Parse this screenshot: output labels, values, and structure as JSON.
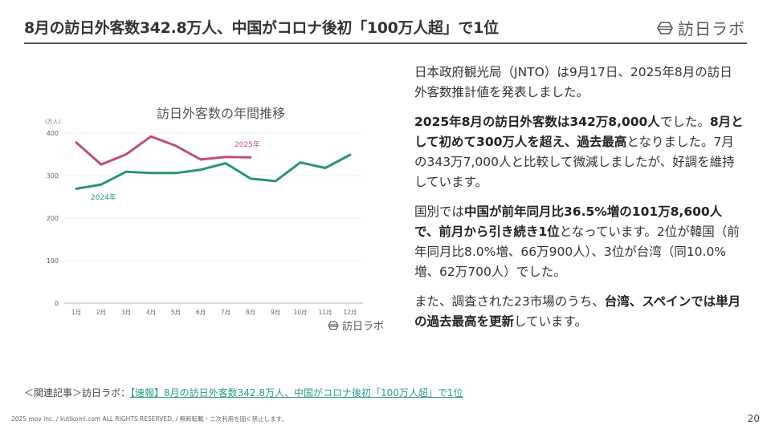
{
  "header": {
    "title": "8月の訪日外客数342.8万人、中国がコロナ後初「100万人超」で1位",
    "logo_text": "訪日ラボ",
    "logo_icon": "lantern-icon"
  },
  "chart": {
    "title": "訪日外客数の年間推移",
    "unit_label": "(万人)",
    "watermark": "訪日ラボ",
    "series_labels": {
      "s2025": "2025年",
      "s2024": "2024年"
    }
  },
  "chart_data": {
    "type": "line",
    "title": "訪日外客数の年間推移",
    "xlabel": "",
    "ylabel": "(万人)",
    "categories": [
      "1月",
      "2月",
      "3月",
      "4月",
      "5月",
      "6月",
      "7月",
      "8月",
      "9月",
      "10月",
      "11月",
      "12月"
    ],
    "series": [
      {
        "name": "2025年",
        "color": "#c0506e",
        "values": [
          378,
          326,
          350,
          392,
          370,
          338,
          344,
          343,
          null,
          null,
          null,
          null
        ]
      },
      {
        "name": "2024年",
        "color": "#2a9478",
        "values": [
          269,
          279,
          309,
          306,
          306,
          314,
          329,
          293,
          287,
          331,
          318,
          349
        ]
      }
    ],
    "yticks": [
      0,
      100,
      200,
      300,
      400
    ],
    "ylim": [
      0,
      400
    ],
    "grid": true,
    "legend_position": "inline labels"
  },
  "body": {
    "p1": "日本政府観光局（JNTO）は9月17日、2025年8月の訪日外客数推計値を発表しました。",
    "p2_bold1": "2025年8月の訪日外客数は342万8,000人",
    "p2_text1": "でした。",
    "p2_bold2": "8月として初めて300万人を超え、過去最高",
    "p2_text2": "となりました。7月の343万7,000人と比較して微減しましたが、好調を維持しています。",
    "p3_text1": "国別では",
    "p3_bold1": "中国が前年同月比36.5%増の101万8,600人で、前月から引き続き1位",
    "p3_text2": "となっています。2位が韓国（前年同月比8.0%増、66万900人）、3位が台湾（同10.0%増、62万700人）でした。",
    "p4_text1": "また、調査された23市場のうち、",
    "p4_bold1": "台湾、スペインでは単月の過去最高を更新",
    "p4_text2": "しています。"
  },
  "footer": {
    "related_prefix": "＜関連記事＞訪日ラボ：",
    "related_link": "【速報】8月の訪日外客数342.8万人、中国がコロナ後初「100万人超」で1位",
    "copyright": "2025 mov inc. / kutikomi.com ALL RIGHTS RESERVED. / 無断転載・二次利用を固く禁止します。",
    "page_number": "20"
  }
}
